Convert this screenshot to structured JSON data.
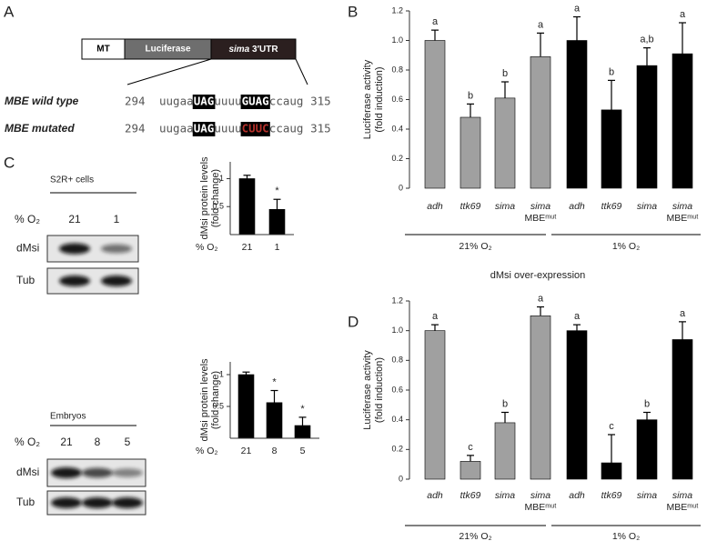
{
  "figure": {
    "panel_labels": [
      "A",
      "B",
      "C",
      "D"
    ]
  },
  "panel_a": {
    "construct": [
      "MT",
      "Luciferase",
      "sima 3′UTR"
    ],
    "rows": [
      {
        "label": "MBE wild type",
        "start": 294,
        "segments": [
          "uugaa",
          "UAG",
          "uuuu",
          "GUAG",
          "ccaug"
        ],
        "highlight": [
          1,
          3
        ],
        "highlight_colors": [
          "#ffffff",
          "#ffffff"
        ],
        "end": 315
      },
      {
        "label": "MBE mutated",
        "start": 294,
        "segments": [
          "uugaa",
          "UAG",
          "uuuu",
          "CUUC",
          "ccaug"
        ],
        "highlight": [
          1,
          3
        ],
        "highlight_colors": [
          "#ffffff",
          "#b5302a"
        ],
        "end": 315
      }
    ]
  },
  "panel_c_blots": [
    {
      "title": "S2R+ cells",
      "axis_label": "% O₂",
      "lanes": [
        "21",
        "1"
      ],
      "rows": [
        "dMsi",
        "Tub"
      ]
    },
    {
      "title": "Embryos",
      "axis_label": "% O₂",
      "lanes": [
        "21",
        "8",
        "5"
      ],
      "rows": [
        "dMsi",
        "Tub"
      ]
    }
  ],
  "chart_data": [
    {
      "type": "bar",
      "ylabel": [
        "Luciferase activity",
        "(fold induction)"
      ],
      "categories": [
        "adh",
        "ttk69",
        "sima",
        "sima MBEᵐᵘᵗ"
      ],
      "series": [
        {
          "name": "21% O₂",
          "color": "#a0a0a0",
          "values": [
            1.0,
            0.48,
            0.61,
            0.89
          ],
          "errors": [
            0.07,
            0.09,
            0.11,
            0.16
          ],
          "labels": [
            "a",
            "b",
            "b",
            "a"
          ]
        },
        {
          "name": "1% O₂",
          "color": "#000000",
          "values": [
            1.0,
            0.53,
            0.83,
            0.91
          ],
          "errors": [
            0.16,
            0.2,
            0.12,
            0.21
          ],
          "labels": [
            "a",
            "b",
            "a,b",
            "a"
          ]
        }
      ],
      "ylim": [
        0,
        1.2
      ],
      "yticks": [
        0,
        0.2,
        0.4,
        0.6,
        0.8,
        {
          "value": 1,
          "label": "1.0"
        },
        1.2
      ]
    },
    {
      "type": "bar",
      "ylabel": [
        "dMsi protein levels",
        "(fold change)"
      ],
      "xlabel": "% O₂",
      "categories": [
        "21",
        "1"
      ],
      "values": [
        1.0,
        0.45
      ],
      "errors": [
        0.06,
        0.18
      ],
      "labels": [
        null,
        "*"
      ],
      "color": "#000000",
      "ylim": [
        0,
        1.3
      ],
      "yticks": [
        0.5,
        1
      ]
    },
    {
      "type": "bar",
      "ylabel": [
        "dMsi protein levels",
        "(fold change)"
      ],
      "xlabel": "% O₂",
      "categories": [
        "21",
        "8",
        "5"
      ],
      "values": [
        1.0,
        0.56,
        0.2
      ],
      "errors": [
        0.04,
        0.19,
        0.13
      ],
      "labels": [
        null,
        "*",
        "*"
      ],
      "color": "#000000",
      "ylim": [
        0,
        1.2
      ],
      "yticks": [
        0.5,
        1
      ]
    },
    {
      "type": "bar",
      "title": "dMsi over-expression",
      "ylabel": [
        "Luciferase activity",
        "(fold induction)"
      ],
      "categories": [
        "adh",
        "ttk69",
        "sima",
        "sima MBEᵐᵘᵗ"
      ],
      "series": [
        {
          "name": "21% O₂",
          "color": "#a0a0a0",
          "values": [
            1.0,
            0.12,
            0.38,
            1.1
          ],
          "errors": [
            0.04,
            0.04,
            0.07,
            0.06
          ],
          "labels": [
            "a",
            "c",
            "b",
            "a"
          ]
        },
        {
          "name": "1% O₂",
          "color": "#000000",
          "values": [
            1.0,
            0.11,
            0.4,
            0.94
          ],
          "errors": [
            0.04,
            0.19,
            0.05,
            0.12
          ],
          "labels": [
            "a",
            "c",
            "b",
            "a"
          ]
        }
      ],
      "ylim": [
        0,
        1.2
      ],
      "yticks": [
        0,
        0.2,
        0.4,
        0.6,
        0.8,
        {
          "value": 1,
          "label": "1.0"
        },
        1.2
      ]
    }
  ]
}
